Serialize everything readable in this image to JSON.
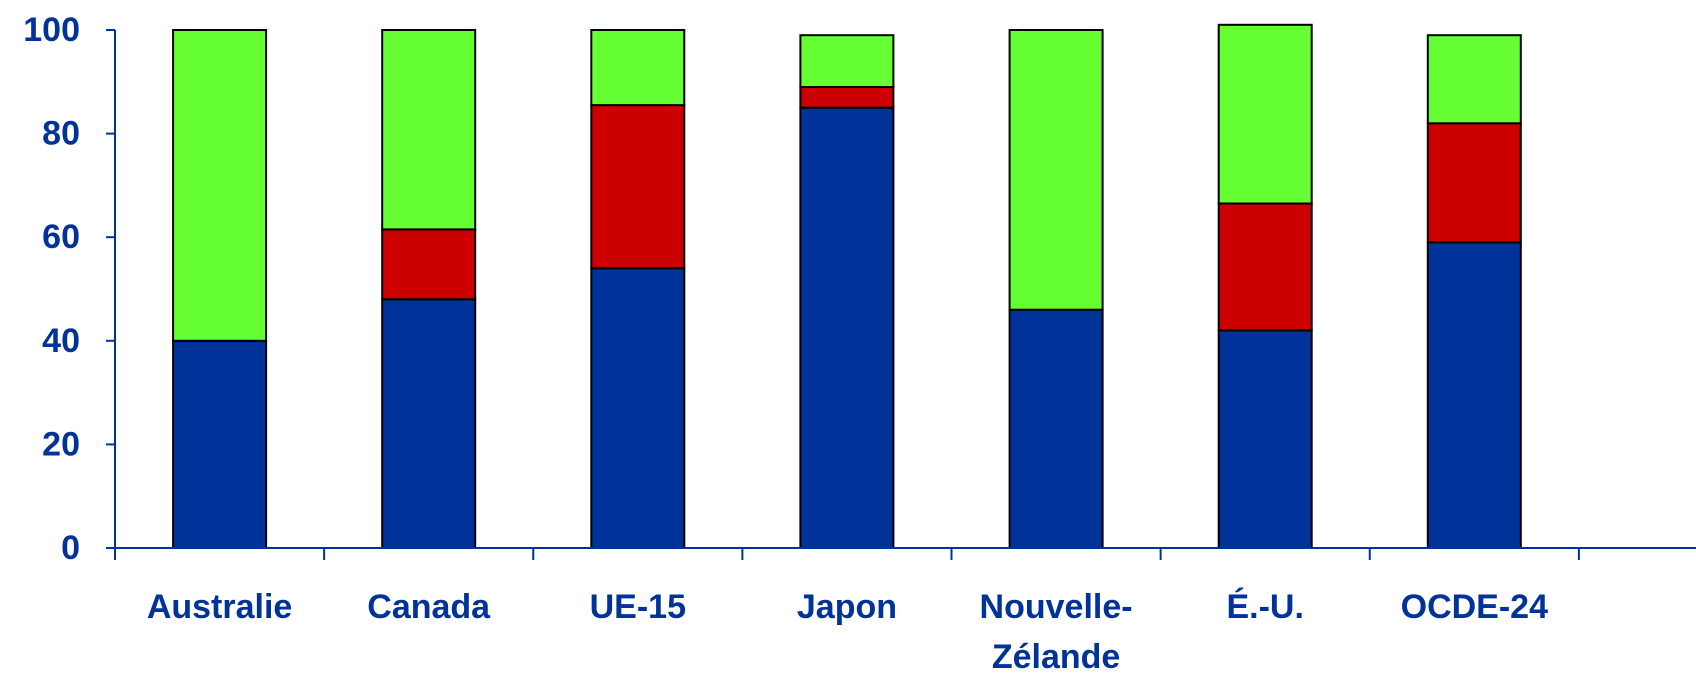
{
  "chart_data": {
    "type": "bar",
    "stacked": true,
    "title": "",
    "xlabel": "",
    "ylabel": "",
    "ylim": [
      0,
      100
    ],
    "yticks": [
      "0",
      "20",
      "40",
      "60",
      "80",
      "100"
    ],
    "grid": false,
    "categories": [
      [
        "Australie"
      ],
      [
        "Canada"
      ],
      [
        "UE-15"
      ],
      [
        "Japon"
      ],
      [
        "Nouvelle-",
        "Zélande"
      ],
      [
        "É.-U."
      ],
      [
        "OCDE-24"
      ]
    ],
    "series": [
      {
        "color": "#003399",
        "values": [
          40,
          48,
          54,
          85,
          46,
          42,
          59
        ]
      },
      {
        "color": "#CC0000",
        "values": [
          0,
          13.5,
          31.5,
          4,
          0,
          24.5,
          23
        ]
      },
      {
        "color": "#66FF33",
        "values": [
          60,
          38.5,
          14.5,
          10,
          54,
          34.5,
          17
        ]
      }
    ]
  },
  "style": {
    "text_color": "#003399",
    "axis_color": "#003399",
    "outline_color": "#000000"
  }
}
